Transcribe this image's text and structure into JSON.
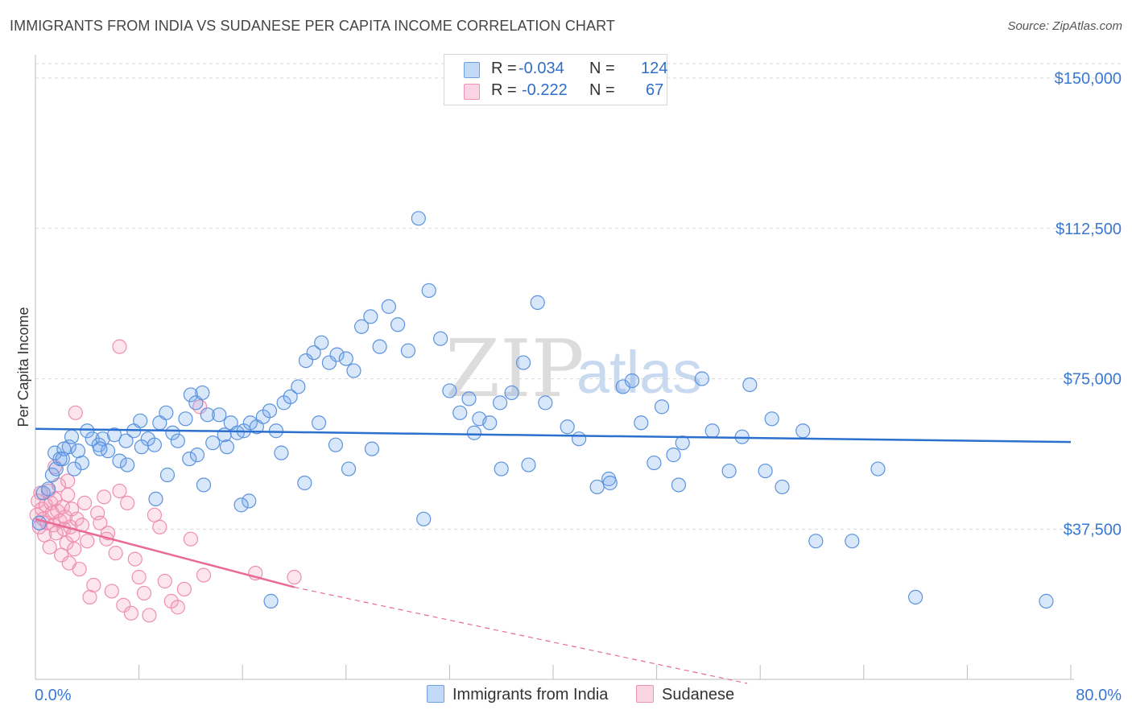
{
  "title": "IMMIGRANTS FROM INDIA VS SUDANESE PER CAPITA INCOME CORRELATION CHART",
  "source": "Source: ZipAtlas.com",
  "watermark": {
    "zip": "ZIP",
    "atlas": "atlas"
  },
  "legend_top": {
    "rows": [
      {
        "r_label": "R =",
        "r_value": "-0.034",
        "n_label": "N =",
        "n_value": "124"
      },
      {
        "r_label": "R =",
        "r_value": "-0.222",
        "n_label": "N =",
        "n_value": "67"
      }
    ]
  },
  "colors": {
    "blue_fill": "#78aaf0",
    "blue_stroke": "#5b93dc",
    "blue_line": "#2b6fcf",
    "pink_fill": "#f5a0be",
    "pink_stroke": "#ee8fb0",
    "pink_line": "#e86a95",
    "axis_text": "#3a78d0",
    "grid": "#d9d9d9"
  },
  "chart_data": {
    "type": "scatter",
    "title": "IMMIGRANTS FROM INDIA VS SUDANESE PER CAPITA INCOME CORRELATION CHART",
    "xlabel": "",
    "ylabel": "Per Capita Income",
    "xlim": [
      0,
      80
    ],
    "ylim": [
      0,
      150000
    ],
    "x_tick_labels": [
      "0.0%",
      "80.0%"
    ],
    "y_ticks": [
      37500,
      75000,
      112500,
      150000
    ],
    "y_tick_labels": [
      "$37,500",
      "$75,000",
      "$112,500",
      "$150,000"
    ],
    "legend": [
      "Immigrants from India",
      "Sudanese"
    ],
    "series": [
      {
        "name": "Immigrants from India",
        "r": -0.034,
        "n": 124,
        "trend": {
          "x": [
            0,
            80
          ],
          "y": [
            62500,
            59200
          ]
        },
        "points": [
          [
            0.3,
            39000
          ],
          [
            0.6,
            46500
          ],
          [
            1.0,
            47500
          ],
          [
            1.3,
            51000
          ],
          [
            1.5,
            56500
          ],
          [
            1.6,
            52500
          ],
          [
            1.9,
            55000
          ],
          [
            2.2,
            57500
          ],
          [
            2.6,
            58000
          ],
          [
            2.8,
            60500
          ],
          [
            3.3,
            57000
          ],
          [
            3.6,
            54000
          ],
          [
            4.0,
            62000
          ],
          [
            4.4,
            60000
          ],
          [
            4.9,
            58500
          ],
          [
            5.2,
            60000
          ],
          [
            5.6,
            57000
          ],
          [
            6.1,
            61000
          ],
          [
            6.5,
            54500
          ],
          [
            7.0,
            59500
          ],
          [
            7.6,
            62000
          ],
          [
            8.1,
            64500
          ],
          [
            8.7,
            60000
          ],
          [
            9.2,
            58500
          ],
          [
            9.6,
            64000
          ],
          [
            10.1,
            66500
          ],
          [
            10.6,
            61500
          ],
          [
            11.0,
            59500
          ],
          [
            11.6,
            65000
          ],
          [
            12.0,
            71000
          ],
          [
            12.4,
            69000
          ],
          [
            12.9,
            71500
          ],
          [
            13.3,
            66000
          ],
          [
            13.7,
            59000
          ],
          [
            14.2,
            66000
          ],
          [
            14.6,
            61000
          ],
          [
            15.1,
            64000
          ],
          [
            15.6,
            61500
          ],
          [
            16.1,
            62000
          ],
          [
            16.6,
            64000
          ],
          [
            17.1,
            63000
          ],
          [
            17.6,
            65500
          ],
          [
            18.1,
            67000
          ],
          [
            18.6,
            62000
          ],
          [
            19.2,
            69000
          ],
          [
            19.7,
            70500
          ],
          [
            20.3,
            73000
          ],
          [
            20.9,
            79500
          ],
          [
            21.5,
            81500
          ],
          [
            22.1,
            84000
          ],
          [
            22.7,
            79000
          ],
          [
            23.3,
            81000
          ],
          [
            24.0,
            80000
          ],
          [
            24.6,
            77000
          ],
          [
            25.2,
            88000
          ],
          [
            25.9,
            90500
          ],
          [
            26.6,
            83000
          ],
          [
            27.3,
            93000
          ],
          [
            28.0,
            88500
          ],
          [
            28.8,
            82000
          ],
          [
            29.6,
            115000
          ],
          [
            30.4,
            97000
          ],
          [
            31.3,
            85000
          ],
          [
            32.0,
            72000
          ],
          [
            32.8,
            66500
          ],
          [
            33.5,
            70000
          ],
          [
            34.3,
            65000
          ],
          [
            35.1,
            64000
          ],
          [
            35.9,
            69000
          ],
          [
            36.8,
            71500
          ],
          [
            37.7,
            79000
          ],
          [
            38.8,
            94000
          ],
          [
            39.4,
            69000
          ],
          [
            41.1,
            63000
          ],
          [
            42.0,
            60000
          ],
          [
            43.4,
            48000
          ],
          [
            44.3,
            50000
          ],
          [
            45.4,
            73000
          ],
          [
            46.1,
            74500
          ],
          [
            46.8,
            64000
          ],
          [
            48.4,
            68000
          ],
          [
            49.3,
            56000
          ],
          [
            50.0,
            59000
          ],
          [
            51.5,
            75000
          ],
          [
            52.3,
            62000
          ],
          [
            53.6,
            52000
          ],
          [
            54.6,
            60500
          ],
          [
            55.2,
            73500
          ],
          [
            56.4,
            52000
          ],
          [
            56.9,
            65000
          ],
          [
            57.7,
            48000
          ],
          [
            59.3,
            62000
          ],
          [
            60.3,
            34500
          ],
          [
            63.1,
            34500
          ],
          [
            65.1,
            52500
          ],
          [
            68.0,
            20500
          ],
          [
            78.1,
            19500
          ],
          [
            18.2,
            19500
          ],
          [
            30.0,
            40000
          ],
          [
            19.0,
            56500
          ],
          [
            20.8,
            49000
          ],
          [
            13.0,
            48500
          ],
          [
            9.3,
            45000
          ],
          [
            7.1,
            53500
          ],
          [
            16.5,
            44500
          ],
          [
            11.9,
            55000
          ],
          [
            8.2,
            58000
          ],
          [
            3.0,
            52500
          ],
          [
            2.1,
            55000
          ],
          [
            5.0,
            57500
          ],
          [
            14.8,
            58000
          ],
          [
            21.9,
            64000
          ],
          [
            26.0,
            57500
          ],
          [
            24.2,
            52500
          ],
          [
            33.9,
            61500
          ],
          [
            36.0,
            52500
          ],
          [
            38.1,
            53500
          ],
          [
            44.4,
            49000
          ],
          [
            47.8,
            54000
          ],
          [
            49.7,
            48500
          ],
          [
            10.2,
            51000
          ],
          [
            12.5,
            56000
          ],
          [
            15.9,
            43500
          ],
          [
            23.2,
            58500
          ]
        ]
      },
      {
        "name": "Sudanese",
        "r": -0.222,
        "n": 67,
        "trend": {
          "x": [
            0,
            20
          ],
          "y": [
            40000,
            23000
          ]
        },
        "trend_extension": {
          "x": [
            20,
            55
          ],
          "y": [
            23000,
            -6600
          ]
        },
        "points": [
          [
            0.1,
            41000
          ],
          [
            0.2,
            44500
          ],
          [
            0.3,
            38000
          ],
          [
            0.4,
            46500
          ],
          [
            0.5,
            42500
          ],
          [
            0.6,
            40000
          ],
          [
            0.7,
            36000
          ],
          [
            0.8,
            43500
          ],
          [
            0.9,
            39000
          ],
          [
            1.0,
            47000
          ],
          [
            1.1,
            33000
          ],
          [
            1.2,
            44000
          ],
          [
            1.3,
            41500
          ],
          [
            1.4,
            38500
          ],
          [
            1.5,
            45000
          ],
          [
            1.6,
            36500
          ],
          [
            1.7,
            42000
          ],
          [
            1.8,
            48500
          ],
          [
            1.9,
            39500
          ],
          [
            2.0,
            31000
          ],
          [
            2.1,
            43000
          ],
          [
            2.2,
            37500
          ],
          [
            2.3,
            40500
          ],
          [
            2.4,
            34000
          ],
          [
            2.5,
            46000
          ],
          [
            2.6,
            29000
          ],
          [
            2.7,
            38000
          ],
          [
            2.8,
            42500
          ],
          [
            2.9,
            36000
          ],
          [
            3.0,
            32500
          ],
          [
            3.2,
            40000
          ],
          [
            3.4,
            27500
          ],
          [
            3.6,
            38500
          ],
          [
            3.8,
            44000
          ],
          [
            4.0,
            34500
          ],
          [
            4.2,
            20500
          ],
          [
            4.5,
            23500
          ],
          [
            4.8,
            41500
          ],
          [
            5.0,
            39000
          ],
          [
            5.3,
            45500
          ],
          [
            5.6,
            36500
          ],
          [
            5.9,
            22000
          ],
          [
            6.2,
            31500
          ],
          [
            6.5,
            47000
          ],
          [
            6.8,
            18500
          ],
          [
            7.1,
            44000
          ],
          [
            7.4,
            16500
          ],
          [
            7.7,
            30000
          ],
          [
            8.0,
            25500
          ],
          [
            8.4,
            21500
          ],
          [
            8.8,
            16000
          ],
          [
            9.2,
            41000
          ],
          [
            9.6,
            38000
          ],
          [
            10.0,
            24500
          ],
          [
            10.5,
            19500
          ],
          [
            11.0,
            18000
          ],
          [
            11.5,
            22500
          ],
          [
            12.0,
            35000
          ],
          [
            12.7,
            68000
          ],
          [
            13.0,
            26000
          ],
          [
            1.5,
            53000
          ],
          [
            2.5,
            49500
          ],
          [
            3.1,
            66500
          ],
          [
            6.5,
            83000
          ],
          [
            5.5,
            35000
          ],
          [
            17.0,
            26500
          ],
          [
            20.0,
            25500
          ]
        ]
      }
    ]
  }
}
